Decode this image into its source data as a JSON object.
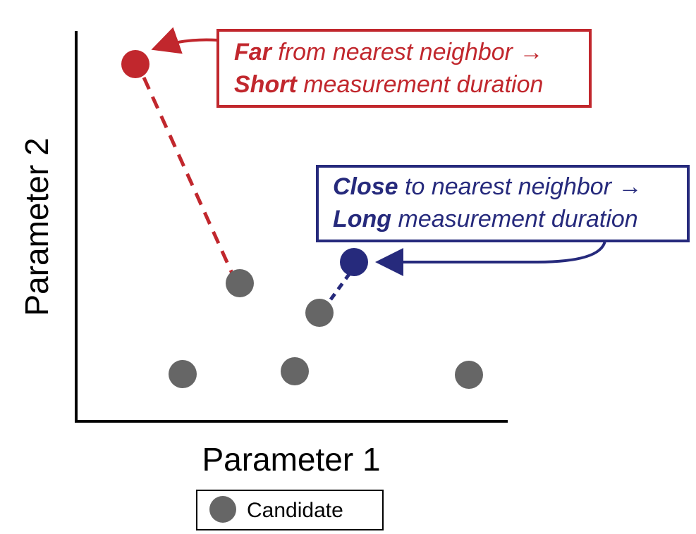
{
  "axes": {
    "x_label": "Parameter 1",
    "y_label": "Parameter 2"
  },
  "legend": {
    "label": "Candidate",
    "marker_color": "#666666"
  },
  "colors": {
    "far": "#c1272d",
    "close": "#262a7c",
    "candidate": "#666666"
  },
  "callouts": {
    "far": {
      "line1_strong": "Far",
      "line1_rest": " from nearest neighbor →",
      "line2_strong": "Short",
      "line2_rest": " measurement duration"
    },
    "close": {
      "line1_strong": "Close",
      "line1_rest": " to nearest neighbor →",
      "line2_strong": "Long",
      "line2_rest": " measurement duration"
    }
  }
}
